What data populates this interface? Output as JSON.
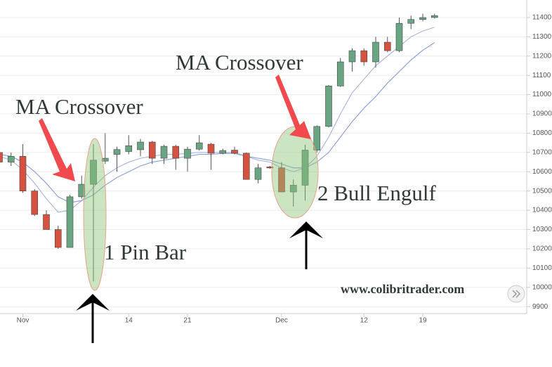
{
  "chart_data": {
    "type": "candlestick",
    "categories": [
      null,
      null,
      "Nov",
      null,
      null,
      null,
      null,
      null,
      null,
      null,
      null,
      "14",
      null,
      null,
      null,
      null,
      "21",
      null,
      null,
      null,
      null,
      null,
      null,
      null,
      "Dec",
      null,
      null,
      null,
      null,
      null,
      null,
      "12",
      null,
      null,
      null,
      null,
      "19",
      null
    ],
    "open": [
      10700,
      10650,
      10680,
      10500,
      10378,
      10300,
      10207,
      10470,
      10535,
      10655,
      10690,
      10705,
      10714,
      10754,
      10670,
      10732,
      10670,
      10717,
      10743,
      10696,
      10712,
      10696,
      10560,
      10625,
      10620,
      10495,
      10530,
      10712,
      10835,
      11045,
      11170,
      11228,
      11170,
      11272,
      11228,
      11370,
      11390,
      11400
    ],
    "high": [
      10710,
      10700,
      10743,
      10510,
      10400,
      10320,
      10480,
      10580,
      10743,
      10800,
      10730,
      10790,
      10770,
      10760,
      10740,
      10740,
      10730,
      10790,
      10750,
      10720,
      10730,
      10700,
      10640,
      10630,
      10650,
      10560,
      10740,
      10840,
      11050,
      11190,
      11240,
      11240,
      11300,
      11300,
      11400,
      11410,
      11420,
      11420
    ],
    "low": [
      10640,
      10630,
      10490,
      10370,
      10300,
      10200,
      10207,
      10460,
      10031,
      10640,
      10600,
      10690,
      10680,
      10640,
      10640,
      10610,
      10600,
      10710,
      10610,
      10690,
      10690,
      10560,
      10540,
      10615,
      10495,
      10420,
      10450,
      10700,
      10830,
      11040,
      11120,
      11150,
      11140,
      11220,
      11220,
      11340,
      11380,
      11395
    ],
    "close": [
      10650,
      10680,
      10500,
      10378,
      10300,
      10207,
      10470,
      10535,
      10660,
      10670,
      10715,
      10735,
      10754,
      10670,
      10732,
      10670,
      10717,
      10750,
      10696,
      10710,
      10696,
      10560,
      10620,
      10620,
      10495,
      10530,
      10712,
      10835,
      11045,
      11170,
      11228,
      11170,
      11272,
      11228,
      11370,
      11390,
      11400,
      11410
    ],
    "up_color": "#6aa583",
    "down_color": "#d4523f",
    "series": [
      {
        "color": "#a9b8dc",
        "values": [
          10680,
          10660,
          10610,
          10540,
          10460,
          10390,
          10400,
          10450,
          10520,
          10580,
          10620,
          10650,
          10670,
          10680,
          10690,
          10690,
          10695,
          10700,
          10700,
          10700,
          10700,
          10680,
          10660,
          10650,
          10620,
          10600,
          10620,
          10680,
          10780,
          10900,
          11010,
          11080,
          11150,
          11200,
          11250,
          11300,
          11330,
          11350
        ]
      },
      {
        "color": "#8ea2d6",
        "values": [
          10690,
          10680,
          10650,
          10600,
          10540,
          10470,
          10440,
          10450,
          10480,
          10530,
          10570,
          10600,
          10630,
          10650,
          10660,
          10670,
          10680,
          10690,
          10690,
          10695,
          10695,
          10680,
          10670,
          10660,
          10640,
          10620,
          10620,
          10650,
          10700,
          10780,
          10860,
          10930,
          10990,
          11060,
          11120,
          11180,
          11230,
          11270
        ]
      }
    ],
    "ylim": [
      9864,
      11491
    ],
    "yticks": [
      9900,
      10000,
      10100,
      10200,
      10300,
      10400,
      10500,
      10600,
      10700,
      10800,
      10900,
      11000,
      11100,
      11200,
      11300,
      11400
    ],
    "grid": true,
    "annotations": [
      "MA Crossover",
      "MA Crossover",
      "1 Pin Bar",
      "2 Bull Engulf",
      "www.colibritrader.com"
    ]
  }
}
